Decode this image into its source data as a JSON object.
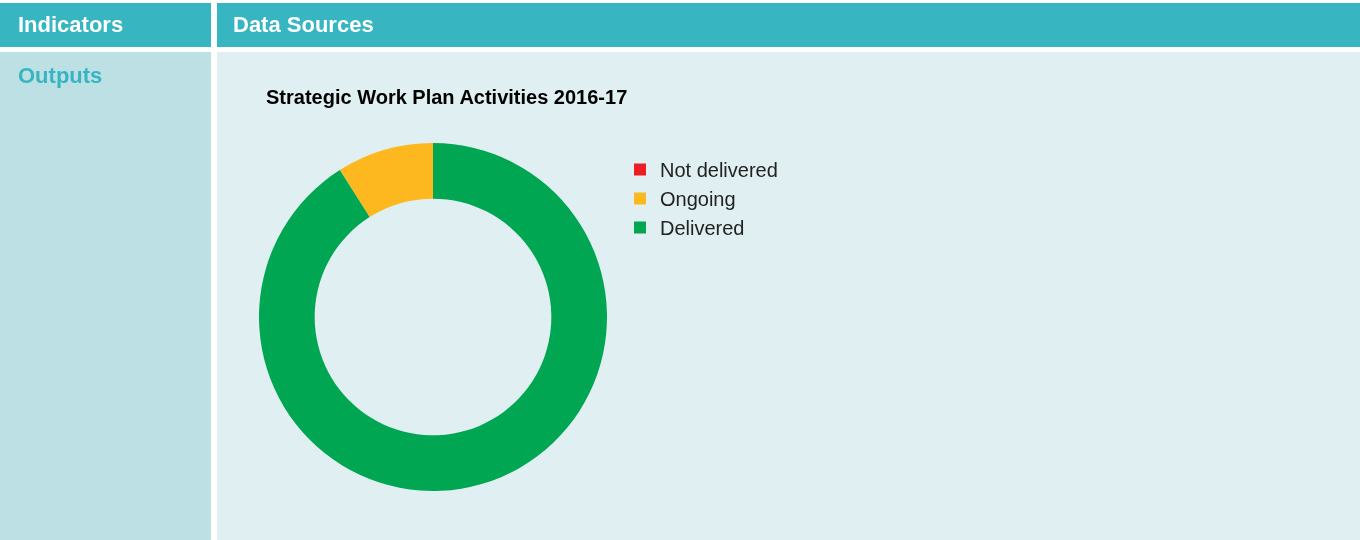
{
  "chart_data": {
    "type": "donut",
    "title": "Strategic Work Plan Activities 2016-17",
    "categories": [
      "Not delivered",
      "Ongoing",
      "Delivered"
    ],
    "values": [
      0,
      9,
      91
    ],
    "colors": [
      "#ee1c25",
      "#fdb71f",
      "#00a651"
    ],
    "legend": "right",
    "annotations": [
      "Indicators",
      "Data Sources",
      "Outputs"
    ]
  }
}
